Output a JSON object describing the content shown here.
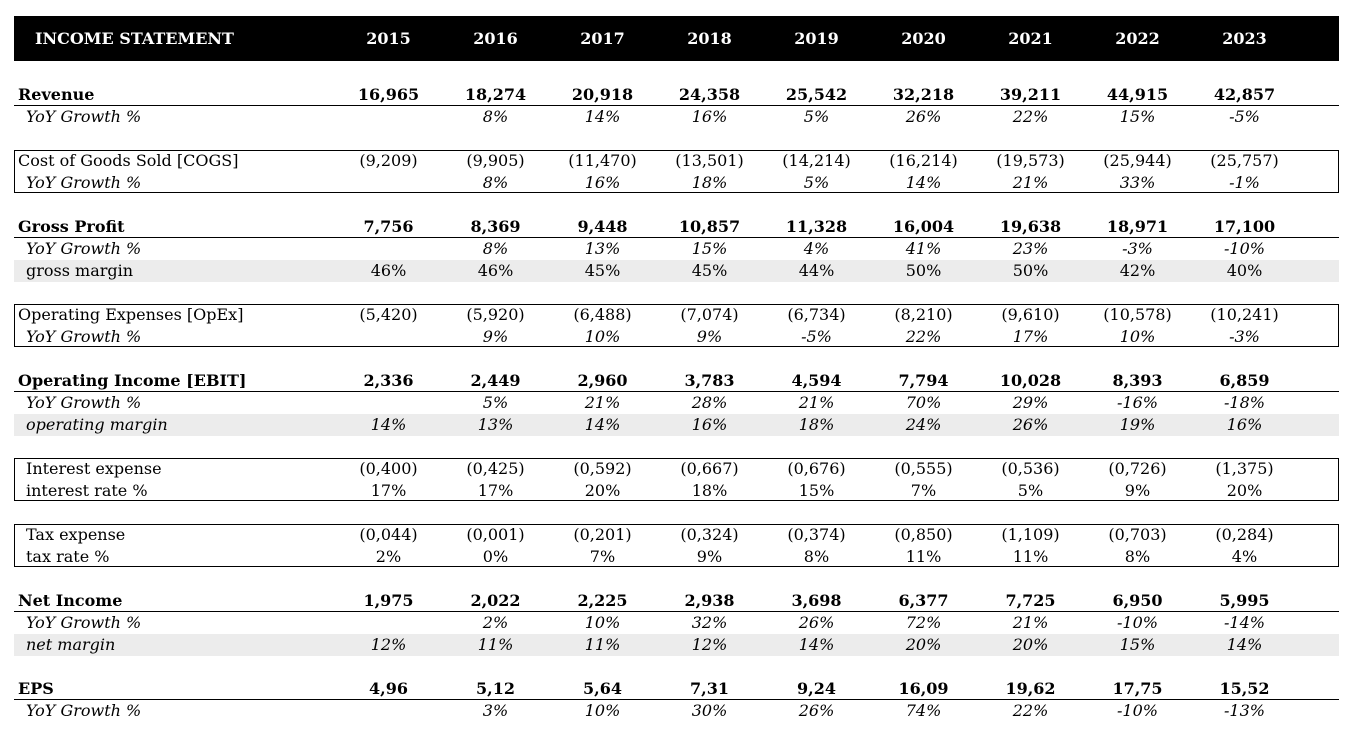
{
  "header": {
    "title": "INCOME STATEMENT",
    "years": [
      "2015",
      "2016",
      "2017",
      "2018",
      "2019",
      "2020",
      "2021",
      "2022",
      "2023"
    ]
  },
  "rows": [
    {
      "label": "Revenue",
      "values": [
        "16,965",
        "18,274",
        "20,918",
        "24,358",
        "25,542",
        "32,218",
        "39,211",
        "44,915",
        "42,857"
      ]
    },
    {
      "label": "YoY Growth %",
      "values": [
        "",
        "8%",
        "14%",
        "16%",
        "5%",
        "26%",
        "22%",
        "15%",
        "-5%"
      ]
    },
    {
      "label": "Cost of Goods Sold [COGS]",
      "values": [
        "(9,209)",
        "(9,905)",
        "(11,470)",
        "(13,501)",
        "(14,214)",
        "(16,214)",
        "(19,573)",
        "(25,944)",
        "(25,757)"
      ]
    },
    {
      "label": "YoY Growth %",
      "values": [
        "",
        "8%",
        "16%",
        "18%",
        "5%",
        "14%",
        "21%",
        "33%",
        "-1%"
      ]
    },
    {
      "label": "Gross Profit",
      "values": [
        "7,756",
        "8,369",
        "9,448",
        "10,857",
        "11,328",
        "16,004",
        "19,638",
        "18,971",
        "17,100"
      ]
    },
    {
      "label": "YoY Growth %",
      "values": [
        "",
        "8%",
        "13%",
        "15%",
        "4%",
        "41%",
        "23%",
        "-3%",
        "-10%"
      ]
    },
    {
      "label": "gross margin",
      "values": [
        "46%",
        "46%",
        "45%",
        "45%",
        "44%",
        "50%",
        "50%",
        "42%",
        "40%"
      ]
    },
    {
      "label": "Operating Expenses [OpEx]",
      "values": [
        "(5,420)",
        "(5,920)",
        "(6,488)",
        "(7,074)",
        "(6,734)",
        "(8,210)",
        "(9,610)",
        "(10,578)",
        "(10,241)"
      ]
    },
    {
      "label": "YoY Growth %",
      "values": [
        "",
        "9%",
        "10%",
        "9%",
        "-5%",
        "22%",
        "17%",
        "10%",
        "-3%"
      ]
    },
    {
      "label": "Operating Income [EBIT]",
      "values": [
        "2,336",
        "2,449",
        "2,960",
        "3,783",
        "4,594",
        "7,794",
        "10,028",
        "8,393",
        "6,859"
      ]
    },
    {
      "label": "YoY Growth %",
      "values": [
        "",
        "5%",
        "21%",
        "28%",
        "21%",
        "70%",
        "29%",
        "-16%",
        "-18%"
      ]
    },
    {
      "label": "operating margin",
      "values": [
        "14%",
        "13%",
        "14%",
        "16%",
        "18%",
        "24%",
        "26%",
        "19%",
        "16%"
      ]
    },
    {
      "label": "Interest expense",
      "values": [
        "(0,400)",
        "(0,425)",
        "(0,592)",
        "(0,667)",
        "(0,676)",
        "(0,555)",
        "(0,536)",
        "(0,726)",
        "(1,375)"
      ]
    },
    {
      "label": "interest rate %",
      "values": [
        "17%",
        "17%",
        "20%",
        "18%",
        "15%",
        "7%",
        "5%",
        "9%",
        "20%"
      ]
    },
    {
      "label": "Tax expense",
      "values": [
        "(0,044)",
        "(0,001)",
        "(0,201)",
        "(0,324)",
        "(0,374)",
        "(0,850)",
        "(1,109)",
        "(0,703)",
        "(0,284)"
      ]
    },
    {
      "label": "tax rate %",
      "values": [
        "2%",
        "0%",
        "7%",
        "9%",
        "8%",
        "11%",
        "11%",
        "8%",
        "4%"
      ]
    },
    {
      "label": "Net Income",
      "values": [
        "1,975",
        "2,022",
        "2,225",
        "2,938",
        "3,698",
        "6,377",
        "7,725",
        "6,950",
        "5,995"
      ]
    },
    {
      "label": "YoY Growth %",
      "values": [
        "",
        "2%",
        "10%",
        "32%",
        "26%",
        "72%",
        "21%",
        "-10%",
        "-14%"
      ]
    },
    {
      "label": "net margin",
      "values": [
        "12%",
        "11%",
        "11%",
        "12%",
        "14%",
        "20%",
        "20%",
        "15%",
        "14%"
      ]
    },
    {
      "label": "EPS",
      "values": [
        "4,96",
        "5,12",
        "5,64",
        "7,31",
        "9,24",
        "16,09",
        "19,62",
        "17,75",
        "15,52"
      ]
    },
    {
      "label": "YoY Growth %",
      "values": [
        "",
        "3%",
        "10%",
        "30%",
        "26%",
        "74%",
        "22%",
        "-10%",
        "-13%"
      ]
    }
  ],
  "styles": {
    "header_background": "#000000",
    "header_text": "#ffffff",
    "shade_row": "#ececec"
  }
}
